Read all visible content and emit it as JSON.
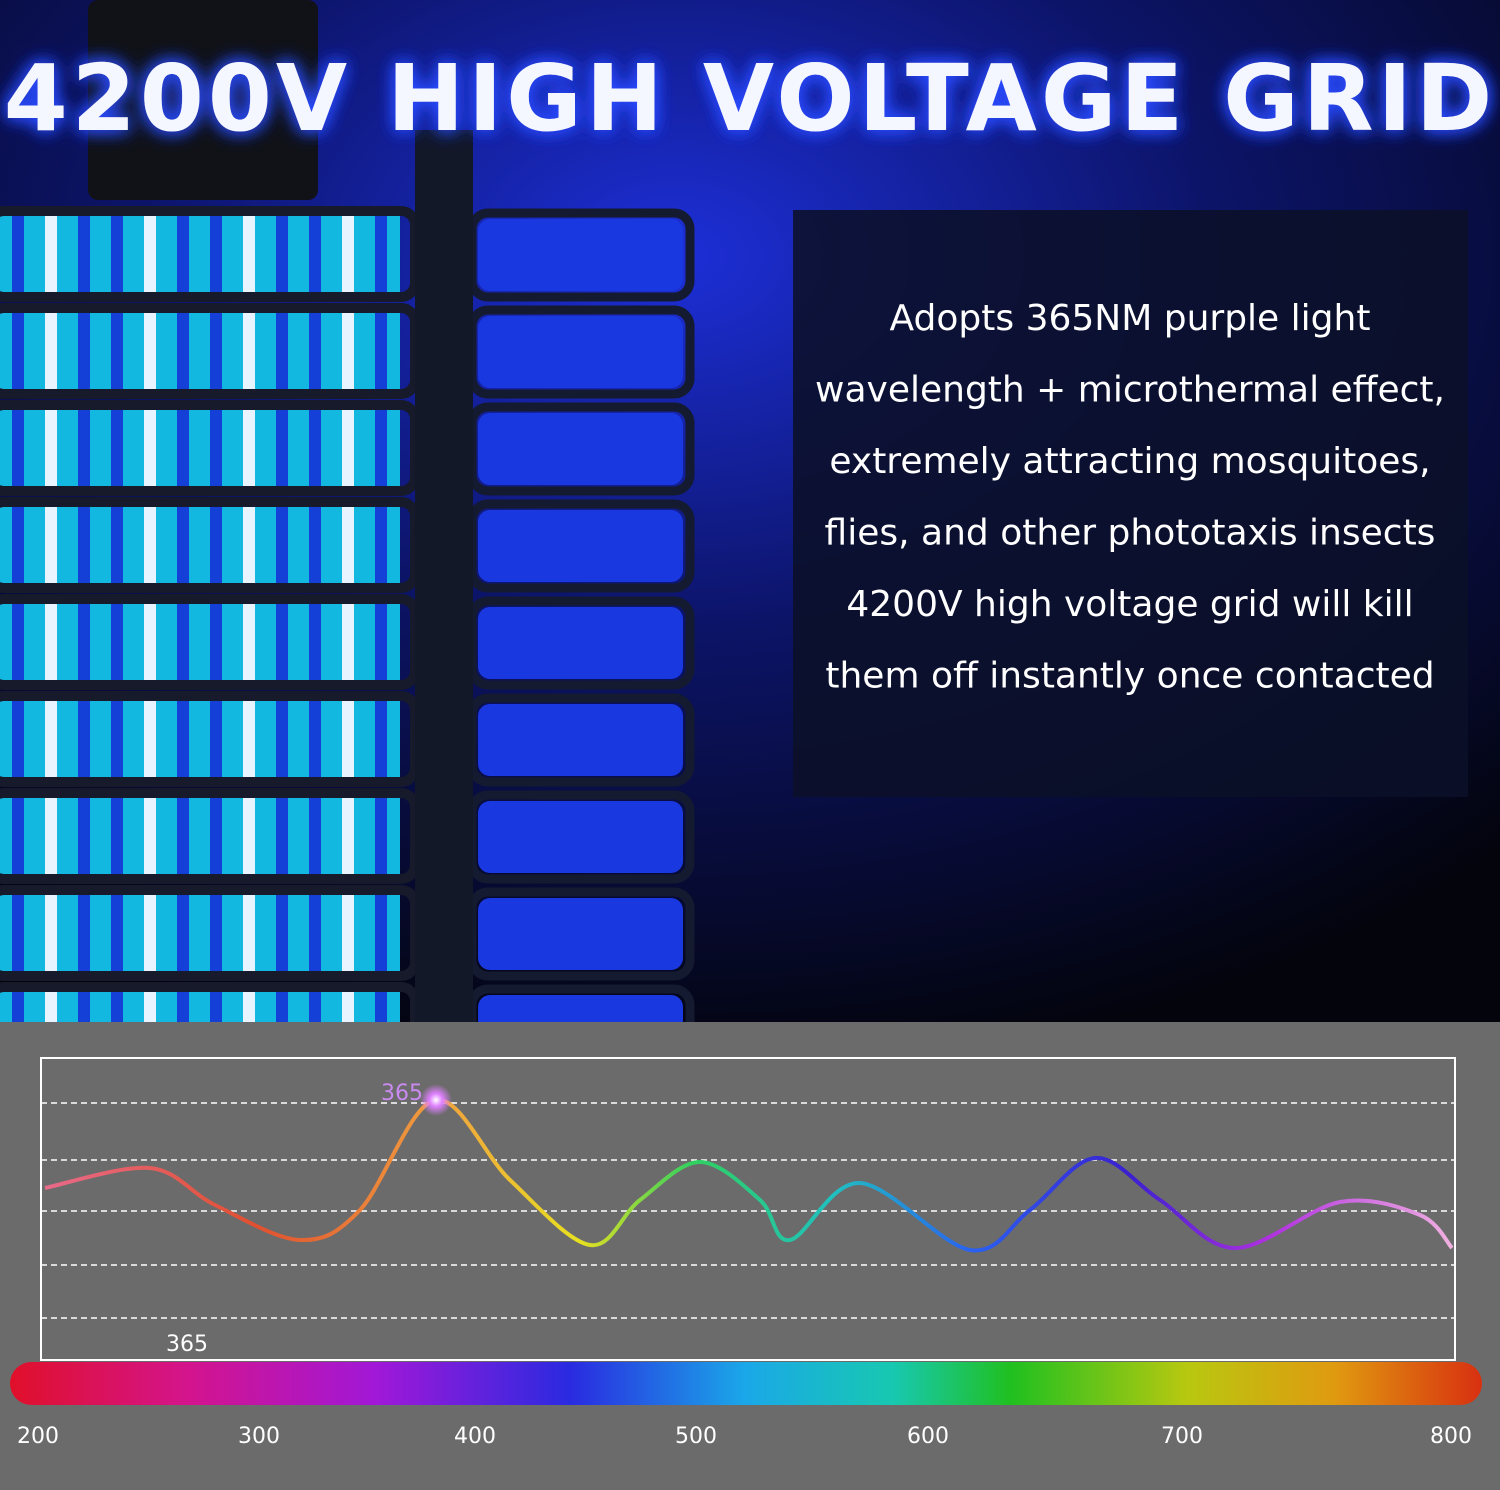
{
  "header": {
    "title": "4200V HIGH VOLTAGE GRID"
  },
  "description": {
    "lines": [
      "Adopts 365NM purple light",
      "wavelength + microthermal effect,",
      "extremely attracting mosquitoes,",
      "flies, and other phototaxis insects",
      "4200V high voltage grid will kill",
      "them off instantly once contacted"
    ]
  },
  "spectrum": {
    "peak_label": "365",
    "marker_label": "365",
    "ticks": [
      "200",
      "300",
      "400",
      "500",
      "600",
      "700",
      "800"
    ]
  }
}
